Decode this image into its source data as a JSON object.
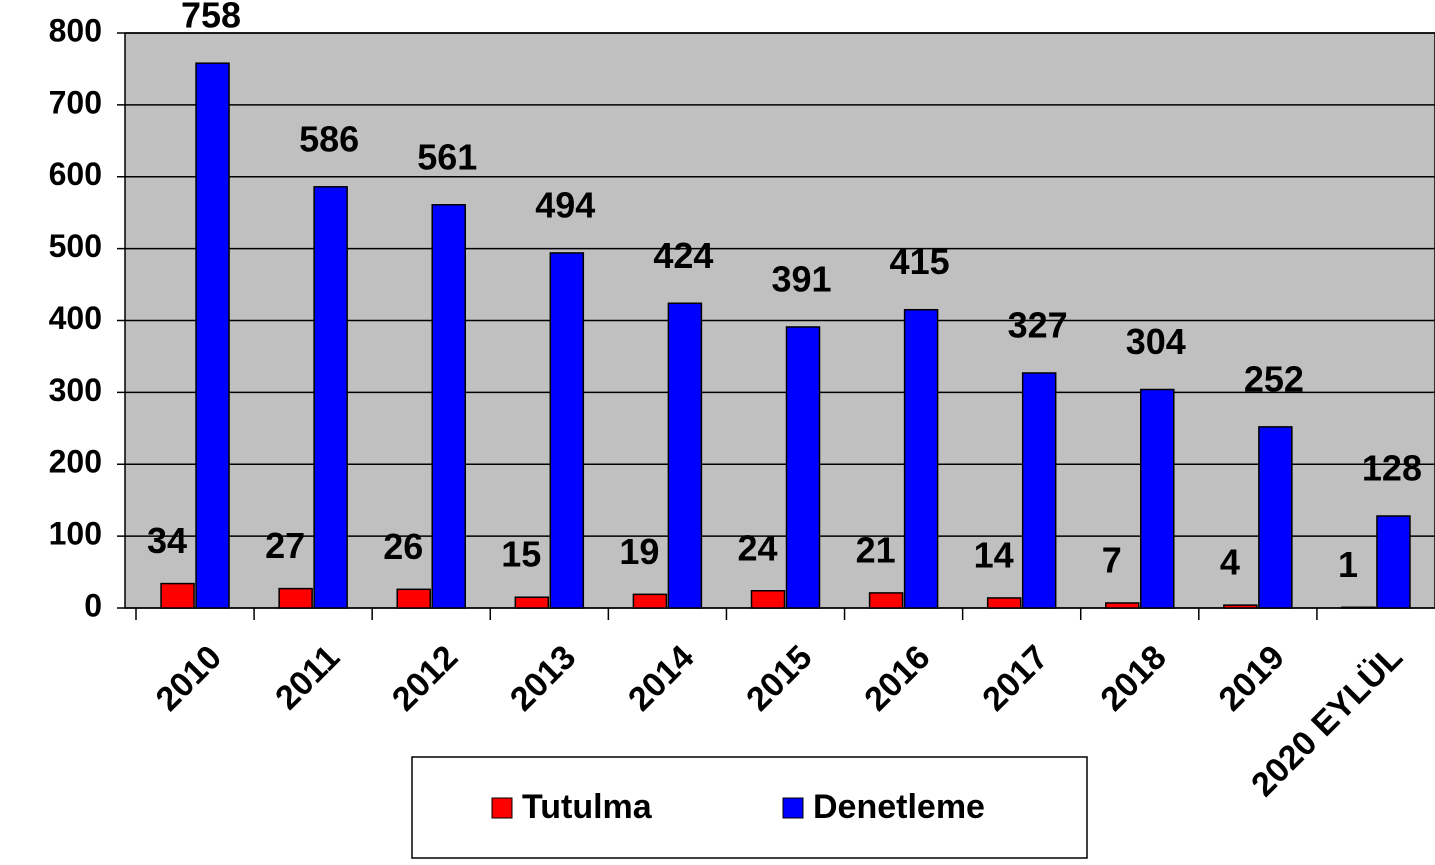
{
  "chart_data": {
    "type": "bar",
    "categories": [
      "2010",
      "2011",
      "2012",
      "2013",
      "2014",
      "2015",
      "2016",
      "2017",
      "2018",
      "2019",
      "2020 EYLÜL"
    ],
    "series": [
      {
        "name": "Tutulma",
        "color": "#ff0000",
        "values": [
          34,
          27,
          26,
          15,
          19,
          24,
          21,
          14,
          7,
          4,
          1
        ]
      },
      {
        "name": "Denetleme",
        "color": "#0000ff",
        "values": [
          758,
          586,
          561,
          494,
          424,
          391,
          415,
          327,
          304,
          252,
          128
        ]
      }
    ],
    "ylim": [
      0,
      800
    ],
    "yticks": [
      0,
      100,
      200,
      300,
      400,
      500,
      600,
      700,
      800
    ],
    "grid": true,
    "plot_background": "#c0c0c0",
    "legend": "bottom"
  }
}
